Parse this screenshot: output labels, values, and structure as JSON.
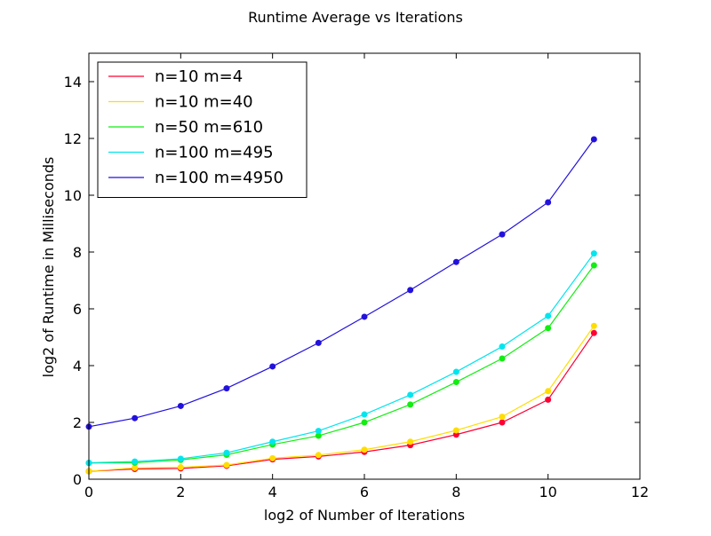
{
  "chart_data": {
    "type": "line",
    "title": "Runtime Average vs Iterations",
    "xlabel": "log2 of Number of Iterations",
    "ylabel": "log2 of Runtime in Milliseconds",
    "xlim": [
      0,
      12
    ],
    "ylim": [
      0,
      15
    ],
    "xticks": [
      0,
      2,
      4,
      6,
      8,
      10,
      12
    ],
    "yticks": [
      0,
      2,
      4,
      6,
      8,
      10,
      12,
      14
    ],
    "grid": false,
    "legend_position": "top-left",
    "x": [
      0,
      1,
      2,
      3,
      4,
      5,
      6,
      7,
      8,
      9,
      10,
      11
    ],
    "series": [
      {
        "name": "n=10 m=4",
        "color": "#ff0033",
        "values": [
          0.28,
          0.36,
          0.38,
          0.47,
          0.7,
          0.8,
          0.96,
          1.2,
          1.57,
          2.0,
          2.8,
          5.15
        ]
      },
      {
        "name": "n=10 m=40",
        "color": "#ffdd00",
        "values": [
          0.28,
          0.4,
          0.42,
          0.5,
          0.74,
          0.85,
          1.04,
          1.32,
          1.72,
          2.2,
          3.1,
          5.4
        ]
      },
      {
        "name": "n=50 m=610",
        "color": "#11ee11",
        "values": [
          0.57,
          0.58,
          0.68,
          0.86,
          1.22,
          1.53,
          2.0,
          2.63,
          3.42,
          4.25,
          5.32,
          7.53
        ]
      },
      {
        "name": "n=100 m=495",
        "color": "#00e5ee",
        "values": [
          0.58,
          0.62,
          0.72,
          0.93,
          1.32,
          1.7,
          2.28,
          2.97,
          3.78,
          4.67,
          5.75,
          7.95
        ]
      },
      {
        "name": "n=100 m=4950",
        "color": "#2211dd",
        "values": [
          1.85,
          2.15,
          2.58,
          3.2,
          3.97,
          4.8,
          5.72,
          6.66,
          7.65,
          8.62,
          9.75,
          11.97
        ]
      }
    ]
  }
}
